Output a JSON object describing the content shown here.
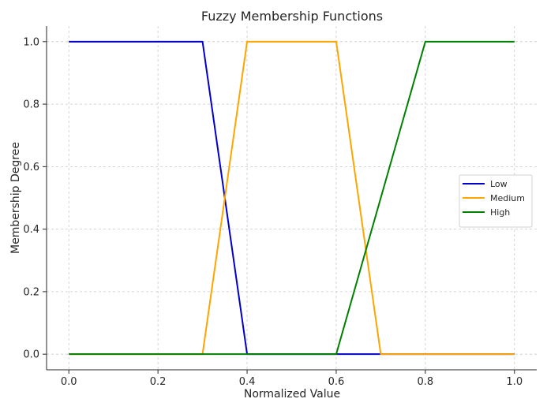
{
  "chart_data": {
    "type": "line",
    "title": "Fuzzy Membership Functions",
    "xlabel": "Normalized Value",
    "ylabel": "Membership Degree",
    "xlim": [
      -0.05,
      1.05
    ],
    "ylim": [
      -0.05,
      1.05
    ],
    "xticks": [
      0.0,
      0.2,
      0.4,
      0.6,
      0.8,
      1.0
    ],
    "xtick_labels": [
      "0.0",
      "0.2",
      "0.4",
      "0.6",
      "0.8",
      "1.0"
    ],
    "yticks": [
      0.0,
      0.2,
      0.4,
      0.6,
      0.8,
      1.0
    ],
    "ytick_labels": [
      "0.0",
      "0.2",
      "0.4",
      "0.6",
      "0.8",
      "1.0"
    ],
    "grid": true,
    "legend_position": "center-right",
    "series": [
      {
        "name": "Low",
        "color": "#0000cc",
        "x": [
          0.0,
          0.3,
          0.4,
          0.6,
          0.7,
          1.0
        ],
        "y": [
          1.0,
          1.0,
          0.0,
          0.0,
          0.0,
          0.0
        ]
      },
      {
        "name": "Medium",
        "color": "#ffa500",
        "x": [
          0.0,
          0.3,
          0.4,
          0.6,
          0.7,
          1.0
        ],
        "y": [
          0.0,
          0.0,
          1.0,
          1.0,
          0.0,
          0.0
        ]
      },
      {
        "name": "High",
        "color": "#008000",
        "x": [
          0.0,
          0.6,
          0.8,
          1.0
        ],
        "y": [
          0.0,
          0.0,
          1.0,
          1.0
        ]
      }
    ]
  }
}
